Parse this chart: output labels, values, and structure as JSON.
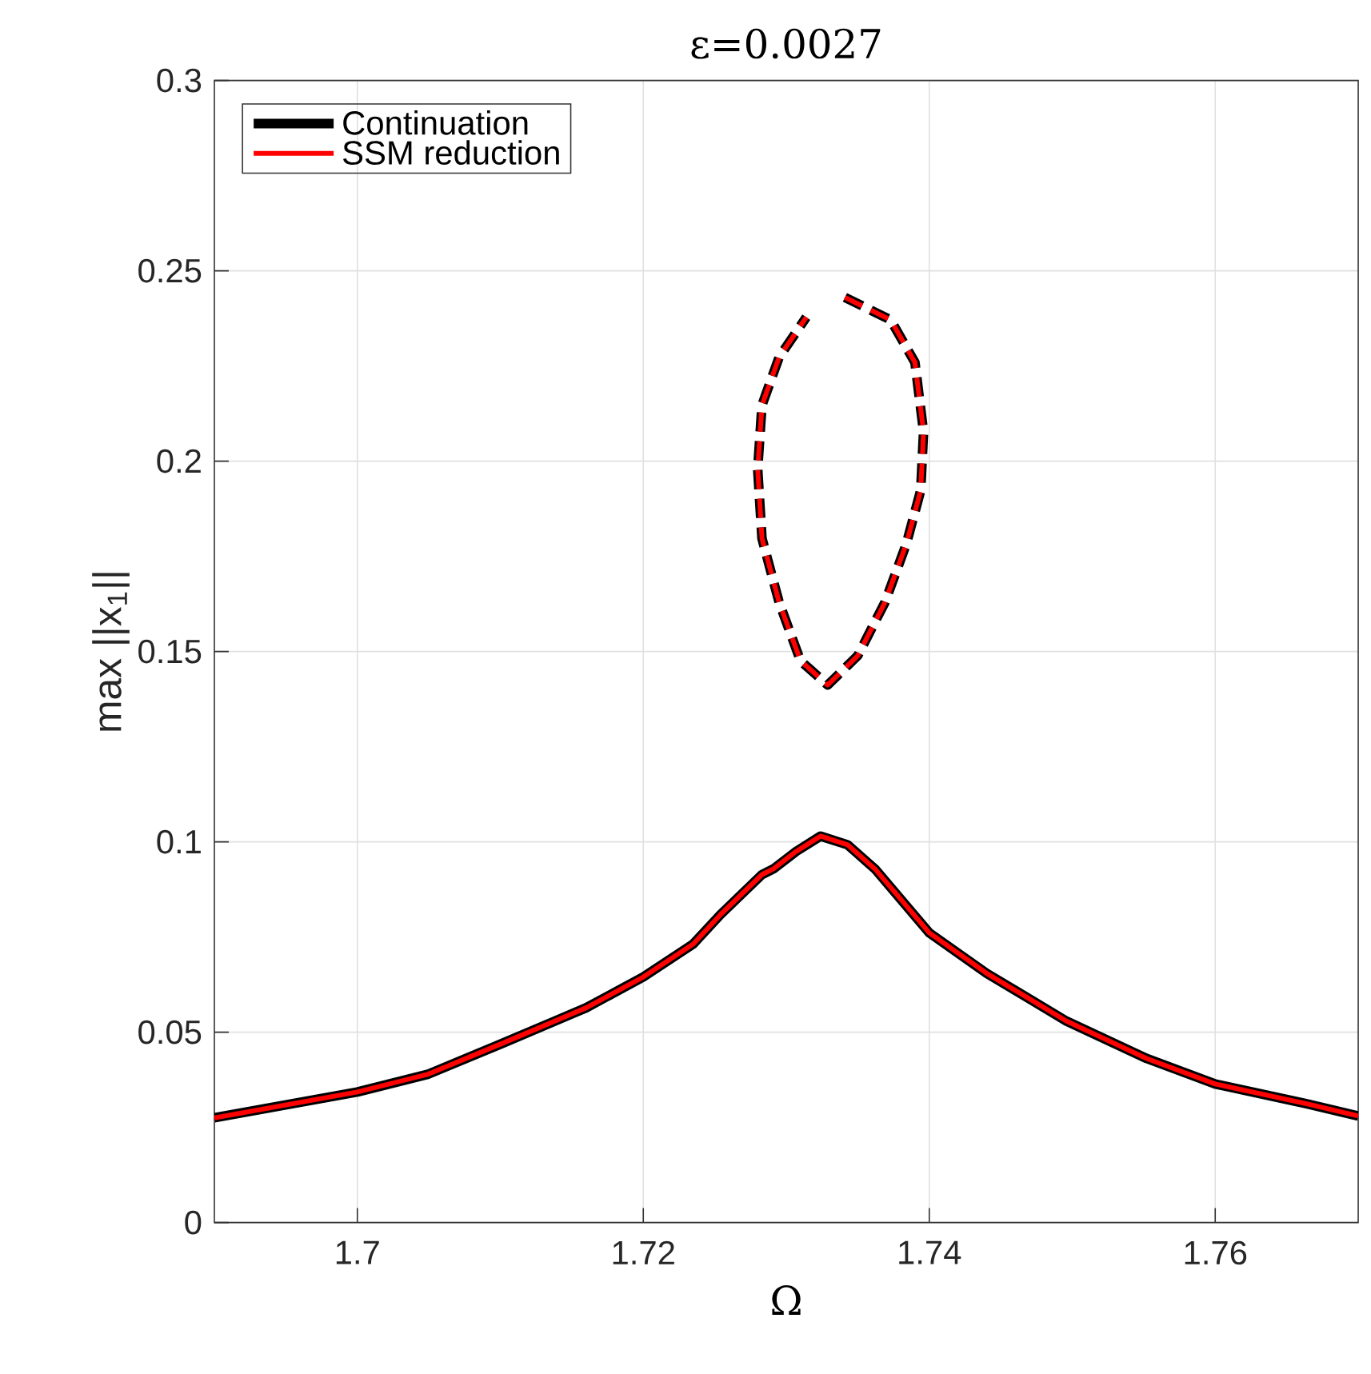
{
  "chart_data": {
    "type": "line",
    "title": "ε=0.0027",
    "xlabel": "Ω",
    "ylabel": "max ||x$_{1}$||",
    "xlim": [
      1.69,
      1.77
    ],
    "ylim": [
      0,
      0.3
    ],
    "xticks": [
      1.7,
      1.72,
      1.74,
      1.76
    ],
    "yticks": [
      0,
      0.05,
      0.1,
      0.15,
      0.2,
      0.25,
      0.3
    ],
    "grid": true,
    "legend": "top left",
    "series": [
      {
        "name": "Continuation",
        "color": "#000000",
        "line_style": "solid",
        "x": [
          1.69,
          1.7,
          1.7049,
          1.7101,
          1.716,
          1.72,
          1.7235,
          1.7254,
          1.7283,
          1.7291,
          1.7307,
          1.7324,
          1.7343,
          1.7362,
          1.7381,
          1.74,
          1.744,
          1.7496,
          1.7552,
          1.76,
          1.7664,
          1.77
        ],
        "values": [
          0.0275,
          0.0343,
          0.0389,
          0.047,
          0.0564,
          0.0645,
          0.0732,
          0.0809,
          0.0914,
          0.0929,
          0.0975,
          0.1015,
          0.0992,
          0.0929,
          0.0845,
          0.0761,
          0.0655,
          0.0529,
          0.0431,
          0.0364,
          0.0312,
          0.028
        ]
      },
      {
        "name": "SSM reduction",
        "color": "#ff0000",
        "line_style": "solid",
        "x": [
          1.69,
          1.7,
          1.7049,
          1.7101,
          1.716,
          1.72,
          1.7235,
          1.7254,
          1.7283,
          1.7291,
          1.7307,
          1.7324,
          1.7343,
          1.7362,
          1.7381,
          1.74,
          1.744,
          1.7496,
          1.7552,
          1.76,
          1.7664,
          1.77
        ],
        "values": [
          0.0275,
          0.0343,
          0.0389,
          0.047,
          0.0564,
          0.0645,
          0.0732,
          0.0809,
          0.0914,
          0.0929,
          0.0975,
          0.1015,
          0.0992,
          0.0929,
          0.0845,
          0.0761,
          0.0655,
          0.0529,
          0.0431,
          0.0364,
          0.0312,
          0.028
        ]
      },
      {
        "color": "#000000",
        "line_style": "dashed",
        "x": [
          1.7341,
          1.7373,
          1.739,
          1.7396,
          1.7394,
          1.7384,
          1.7369,
          1.735,
          1.7329,
          1.731,
          1.7295,
          1.7283,
          1.728,
          1.7283,
          1.7295,
          1.7314
        ],
        "values": [
          0.243,
          0.2371,
          0.2259,
          0.2077,
          0.1923,
          0.1783,
          0.1629,
          0.1489,
          0.1412,
          0.1475,
          0.1629,
          0.1797,
          0.1979,
          0.2147,
          0.2273,
          0.2378
        ]
      },
      {
        "color": "#ff0000",
        "line_style": "dashed",
        "x": [
          1.7341,
          1.7373,
          1.739,
          1.7396,
          1.7394,
          1.7384,
          1.7369,
          1.735,
          1.7329,
          1.731,
          1.7295,
          1.7283,
          1.728,
          1.7283,
          1.7295,
          1.7314
        ],
        "values": [
          0.243,
          0.2371,
          0.2259,
          0.2077,
          0.1923,
          0.1783,
          0.1629,
          0.1489,
          0.1412,
          0.1475,
          0.1629,
          0.1797,
          0.1979,
          0.2147,
          0.2273,
          0.2378
        ]
      }
    ]
  }
}
